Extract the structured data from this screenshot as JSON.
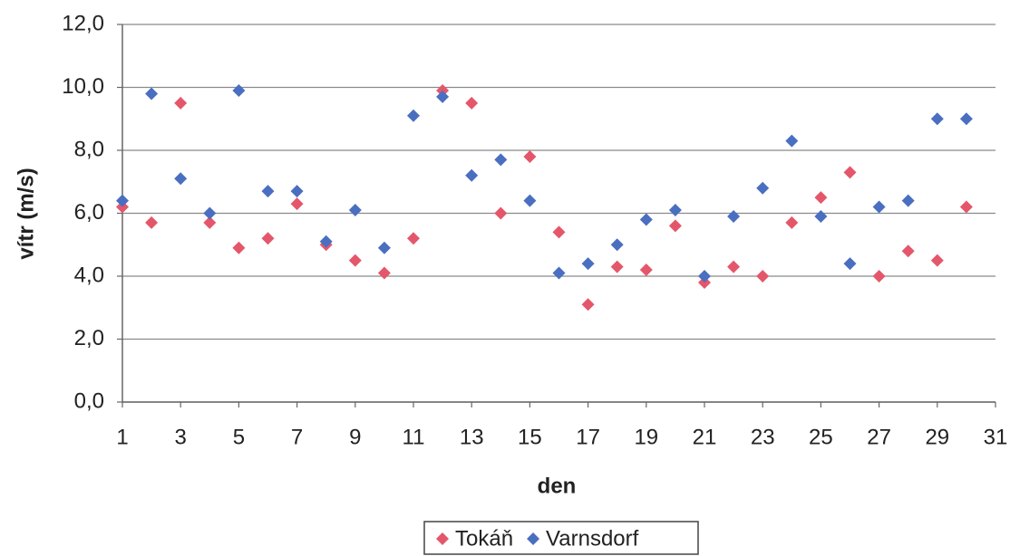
{
  "chart_data": {
    "type": "scatter",
    "x_label": "den",
    "y_label": "vítr (m/s)",
    "x": [
      1,
      2,
      3,
      4,
      5,
      6,
      7,
      8,
      9,
      10,
      11,
      12,
      13,
      14,
      15,
      16,
      17,
      18,
      19,
      20,
      21,
      22,
      23,
      24,
      25,
      26,
      27,
      28,
      29,
      30
    ],
    "series": [
      {
        "name": "Tokáň",
        "color": "#e4576b",
        "values": [
          6.2,
          5.7,
          9.5,
          5.7,
          4.9,
          5.2,
          6.3,
          5.0,
          4.5,
          4.1,
          5.2,
          9.9,
          9.5,
          6.0,
          7.8,
          5.4,
          3.1,
          4.3,
          4.2,
          5.6,
          3.8,
          4.3,
          4.0,
          5.7,
          6.5,
          7.3,
          4.0,
          4.8,
          4.5,
          6.2
        ]
      },
      {
        "name": "Varnsdorf",
        "color": "#4a6fc0",
        "values": [
          6.4,
          9.8,
          7.1,
          6.0,
          9.9,
          6.7,
          6.7,
          5.1,
          6.1,
          4.9,
          9.1,
          9.7,
          7.2,
          7.7,
          6.4,
          4.1,
          4.4,
          5.0,
          5.8,
          6.1,
          4.0,
          5.9,
          6.8,
          8.3,
          5.9,
          4.4,
          6.2,
          6.4,
          9.0,
          9.0
        ]
      }
    ],
    "xlim": [
      1,
      31
    ],
    "xticks": [
      1,
      3,
      5,
      7,
      9,
      11,
      13,
      15,
      17,
      19,
      21,
      23,
      25,
      27,
      29,
      31
    ],
    "ylim": [
      0,
      12
    ],
    "yticks": [
      {
        "value": 0,
        "label": "0,0"
      },
      {
        "value": 2,
        "label": "2,0"
      },
      {
        "value": 4,
        "label": "4,0"
      },
      {
        "value": 6,
        "label": "6,0"
      },
      {
        "value": 8,
        "label": "8,0"
      },
      {
        "value": 10,
        "label": "10,0"
      },
      {
        "value": 12,
        "label": "12,0"
      }
    ],
    "grid": true,
    "legend": "bottom"
  }
}
